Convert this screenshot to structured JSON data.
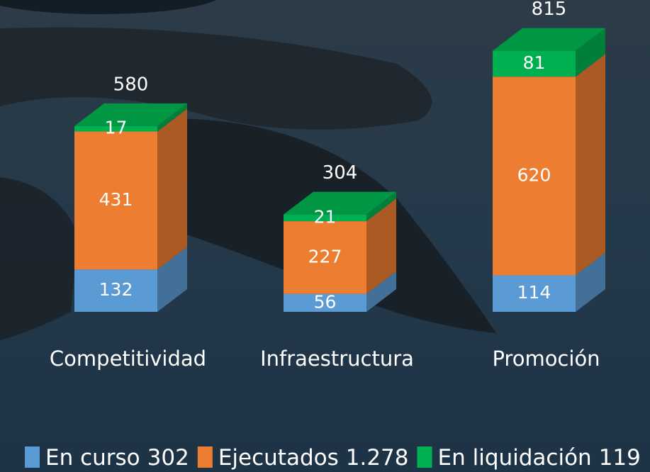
{
  "chart_data": {
    "type": "stacked-3d-bar",
    "categories": [
      "Competitividad",
      "Infraestructura",
      "Promoción"
    ],
    "series": [
      {
        "name": "En curso",
        "total": 302,
        "color": "#5b9bd5",
        "values": [
          132,
          56,
          114
        ]
      },
      {
        "name": "Ejecutados",
        "total": 1278,
        "total_label": "1.278",
        "color": "#ed7d31",
        "values": [
          431,
          227,
          620
        ]
      },
      {
        "name": "En liquidación",
        "total": 119,
        "color": "#00b050",
        "values": [
          17,
          21,
          81
        ]
      }
    ],
    "stack_totals": [
      580,
      304,
      815
    ]
  }
}
